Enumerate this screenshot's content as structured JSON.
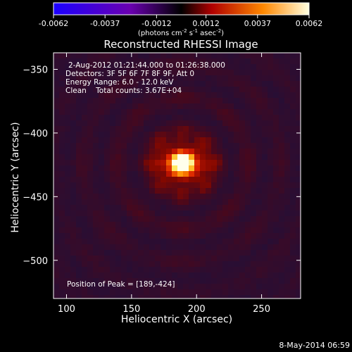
{
  "chart_data": {
    "type": "heatmap",
    "title": "Reconstructed RHESSI Image",
    "xlabel": "Heliocentric X (arcsec)",
    "ylabel": "Heliocentric Y (arcsec)",
    "xlim": [
      90,
      280
    ],
    "ylim": [
      -530,
      -337
    ],
    "xticks": [
      "100",
      "150",
      "200",
      "250"
    ],
    "xtick_values": [
      100,
      150,
      200,
      250
    ],
    "yticks": [
      "-350",
      "-400",
      "-450",
      "-500"
    ],
    "ytick_values": [
      -350,
      -400,
      -450,
      -500
    ],
    "colorbar": {
      "ticks": [
        "-0.0062",
        "-0.0037",
        "-0.0012",
        "0.0012",
        "0.0037",
        "0.0062"
      ],
      "range": [
        -0.0062,
        0.0062
      ],
      "unit_label": "(photons cm-2 s-1 asec-2)",
      "colormap": [
        "#1b00ff",
        "#6a00b0",
        "#000000",
        "#b00000",
        "#ff8800",
        "#ffffe0"
      ]
    },
    "annotations": {
      "time_range": "2-Aug-2012 01:21:44.000 to 01:26:38.000",
      "detectors": "Detectors: 3F 5F 6F 7F 8F 9F, Att 0",
      "energy": "Energy Range: 6.0 - 12.0 keV",
      "clean": "Clean    Total counts: 3.67E+04",
      "peak": "Position of Peak = [189,-424]"
    },
    "peak": {
      "x": 189,
      "y": -424
    },
    "footer_date": "8-May-2014 06:59"
  }
}
